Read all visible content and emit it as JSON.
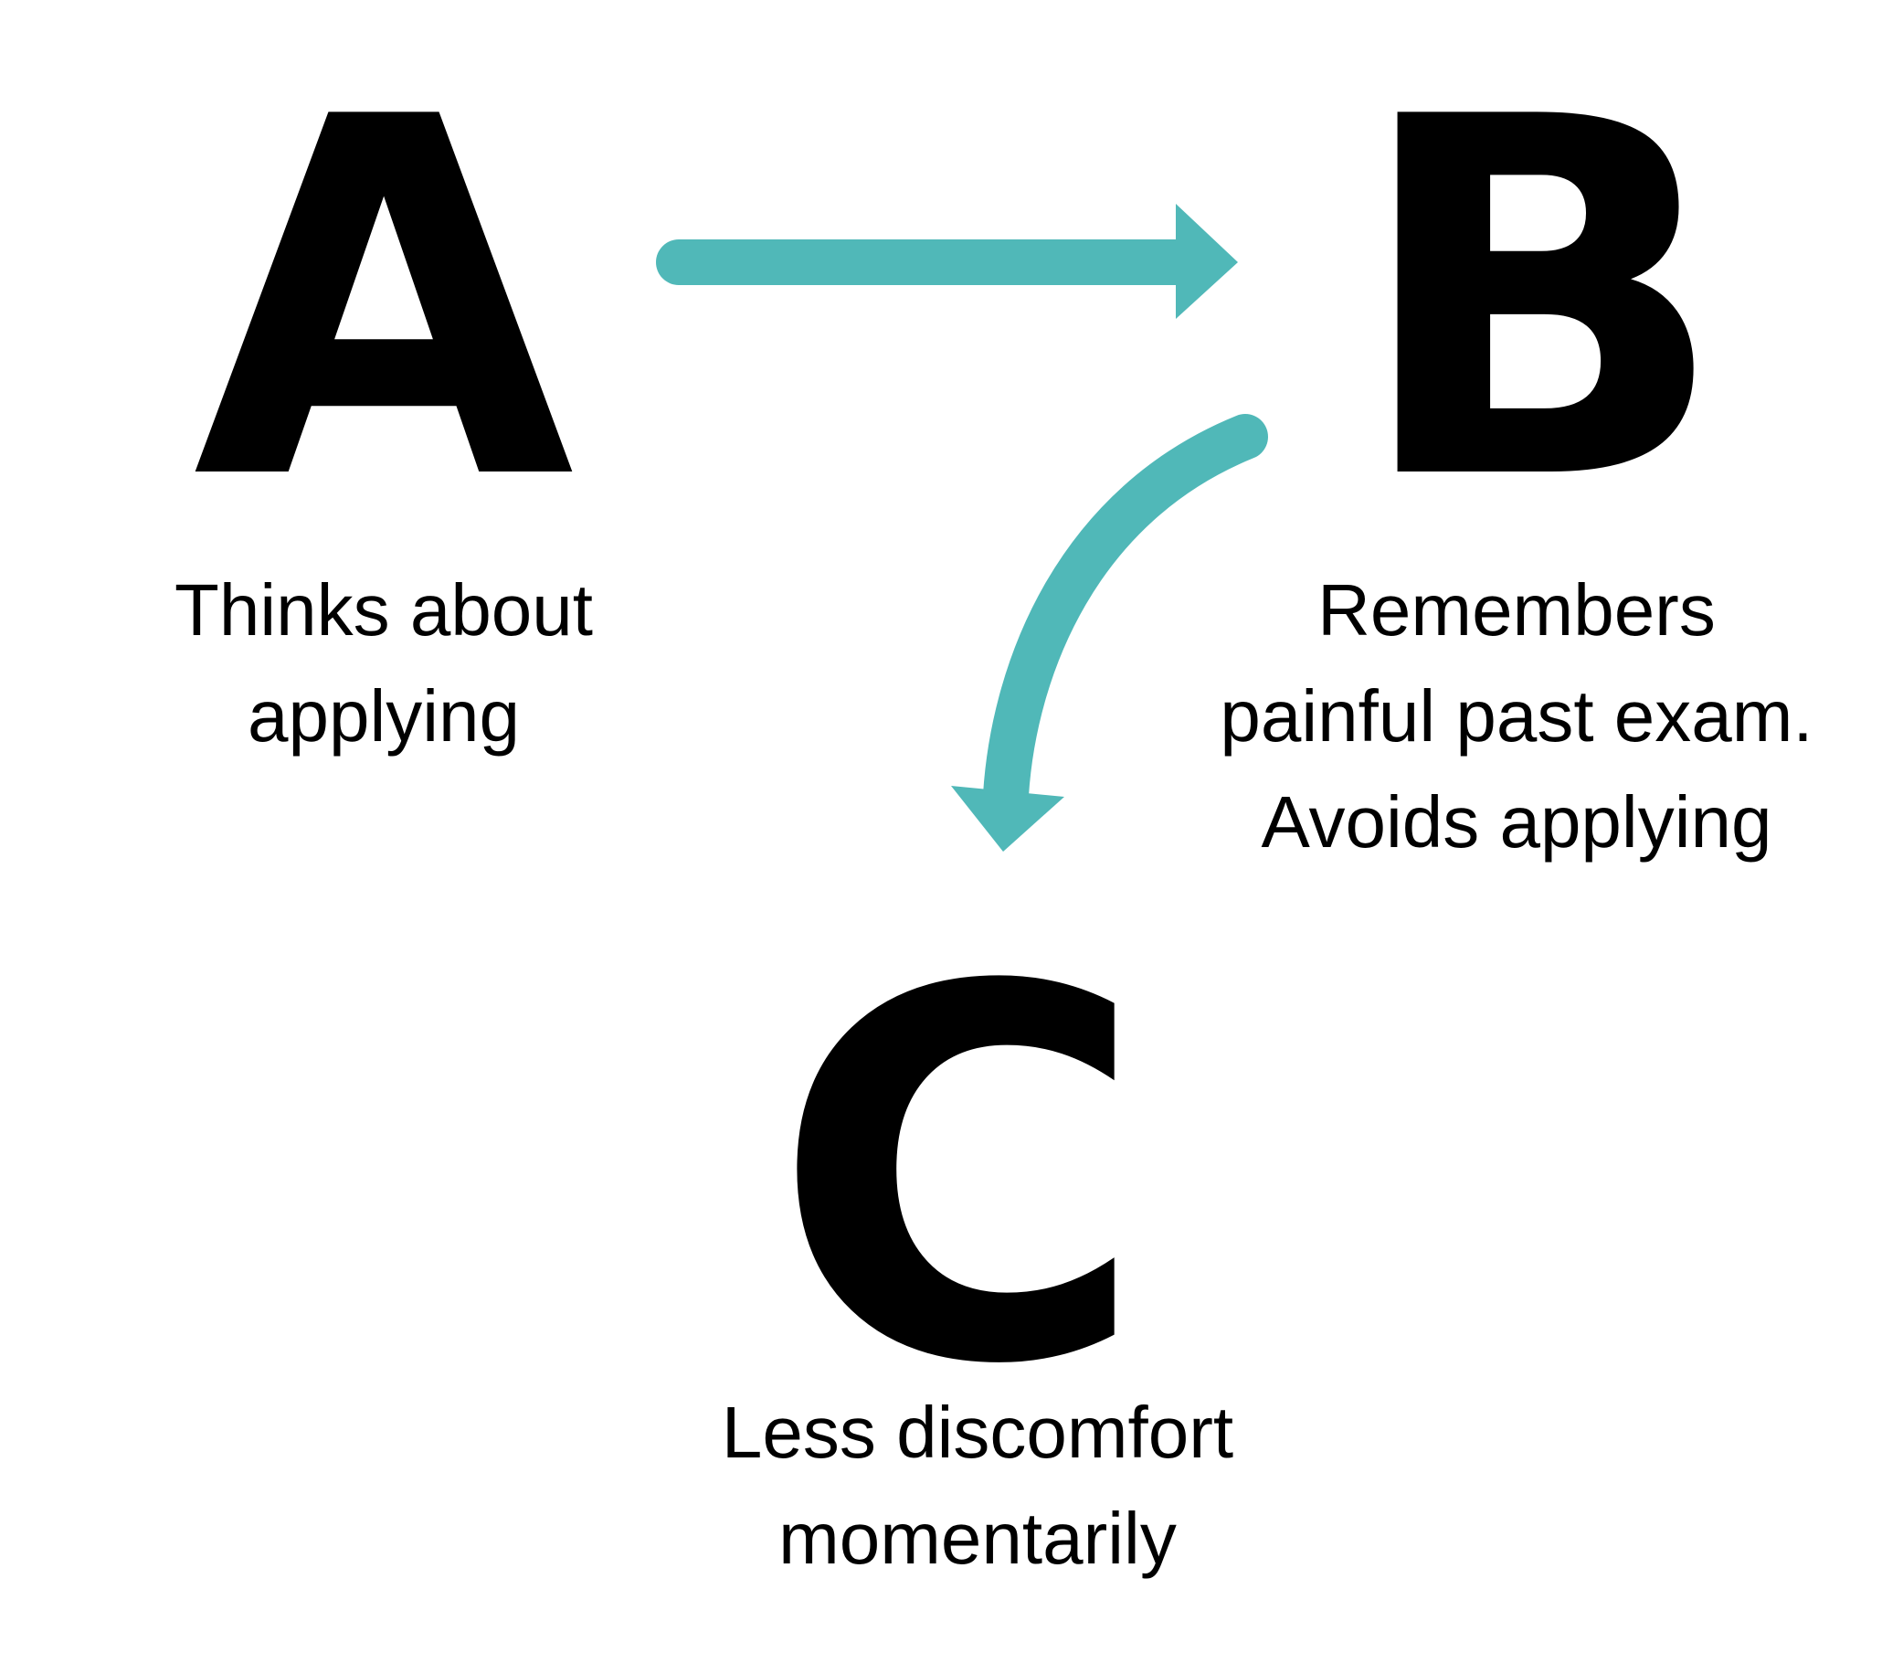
{
  "colors": {
    "text": "#000000",
    "arrow": "#50b8b8",
    "background": "#ffffff"
  },
  "nodes": {
    "a": {
      "letter": "A",
      "caption_lines": [
        "Thinks about",
        "applying"
      ]
    },
    "b": {
      "letter": "B",
      "caption_lines": [
        "Remembers",
        "painful past exam.",
        "Avoids applying"
      ]
    },
    "c": {
      "letter": "C",
      "caption_lines": [
        "Less discomfort",
        "momentarily"
      ]
    }
  },
  "edges": [
    {
      "from": "A",
      "to": "B"
    },
    {
      "from": "B",
      "to": "C"
    }
  ]
}
